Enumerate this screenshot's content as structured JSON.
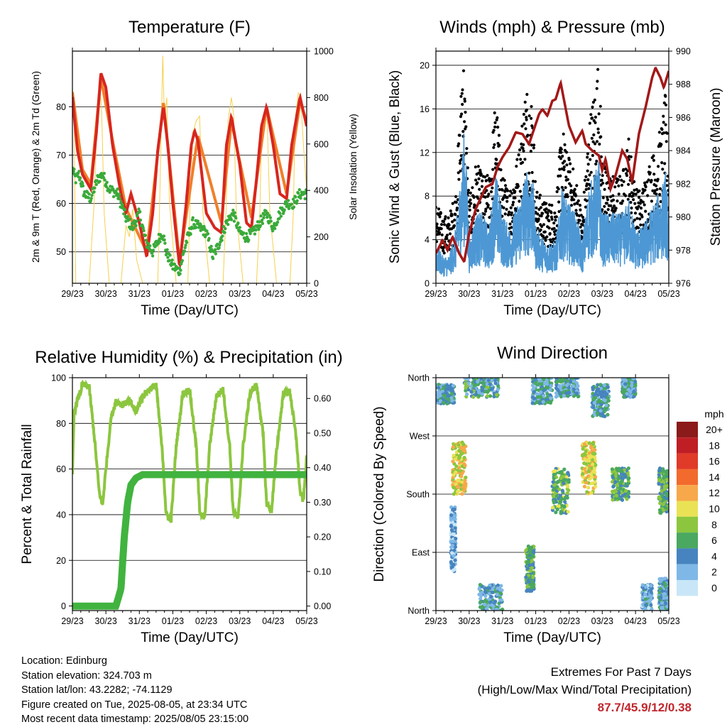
{
  "panels": {
    "temperature": {
      "title": "Temperature (F)"
    },
    "winds": {
      "title": "Winds (mph) & Pressure (mb)"
    },
    "humidity": {
      "title": "Relative Humidity (%) & Precipitation (in)"
    },
    "direction": {
      "title": "Wind Direction"
    }
  },
  "colors": {
    "temp_2m": "#d7261e",
    "temp_9m": "#f07f2a",
    "dewpoint": "#3aaa3a",
    "solar": "#f5d04c",
    "gust": "#000000",
    "wind": "#4d98d4",
    "pressure": "#a31818",
    "humidity": "#8cc63f",
    "rainfall": "#41b33f"
  },
  "chart_data": [
    {
      "type": "line",
      "title": "Temperature (F)",
      "xlabel": "Time (Day/UTC)",
      "ylabel": "2m & 9m T (Red, Orange) & 2m Td (Green)",
      "y2label": "Solar Insolation (Yellow)",
      "x_ticks": [
        "29/23",
        "30/23",
        "31/23",
        "01/23",
        "02/23",
        "03/23",
        "04/23",
        "05/23"
      ],
      "xlim": [
        0,
        7
      ],
      "ylim": [
        43.5,
        91.5
      ],
      "y_ticks": [
        50,
        60,
        70,
        80
      ],
      "y2lim": [
        0,
        1000
      ],
      "y2_ticks": [
        0,
        200,
        400,
        600,
        800,
        1000
      ],
      "grid": "y-major",
      "series": [
        {
          "name": "2m T",
          "axis": "y",
          "x": [
            0,
            0.15,
            0.3,
            0.55,
            0.72,
            0.85,
            1.0,
            1.2,
            1.45,
            1.6,
            1.75,
            2.0,
            2.22,
            2.4,
            2.55,
            2.72,
            2.85,
            3.0,
            3.2,
            3.4,
            3.55,
            3.65,
            3.75,
            4.0,
            4.25,
            4.45,
            4.6,
            4.75,
            5.0,
            5.2,
            5.35,
            5.5,
            5.65,
            5.8,
            6.0,
            6.2,
            6.4,
            6.55,
            6.8,
            7.0
          ],
          "values": [
            82,
            71,
            66,
            63,
            75,
            87,
            84,
            72,
            62,
            58,
            62,
            56,
            49,
            58,
            71,
            80,
            72,
            60,
            47,
            60,
            72,
            75,
            73,
            58,
            55,
            54,
            72,
            78,
            68,
            56,
            55,
            65,
            76,
            80,
            72,
            62,
            61,
            72,
            82,
            76
          ]
        },
        {
          "name": "9m T",
          "axis": "y",
          "x": [
            0,
            0.3,
            0.55,
            0.85,
            1.2,
            1.6,
            2.22,
            2.72,
            3.2,
            3.75,
            4.45,
            4.75,
            5.35,
            5.8,
            6.4,
            6.8,
            7.0
          ],
          "values": [
            83,
            67,
            64,
            86,
            73,
            59,
            50,
            81,
            48,
            74,
            56,
            77,
            57,
            80,
            62,
            81,
            77
          ]
        },
        {
          "name": "2m Td",
          "axis": "y",
          "x": [
            0,
            0.1,
            0.2,
            0.35,
            0.55,
            0.75,
            0.9,
            1.1,
            1.35,
            1.6,
            1.8,
            2.0,
            2.2,
            2.4,
            2.6,
            2.7,
            2.8,
            3.0,
            3.2,
            3.4,
            3.6,
            3.8,
            4.0,
            4.2,
            4.4,
            4.6,
            4.8,
            5.0,
            5.2,
            5.4,
            5.6,
            5.8,
            6.0,
            6.2,
            6.4,
            6.6,
            6.8,
            7.0
          ],
          "values": [
            67,
            65,
            66,
            62,
            61,
            65,
            66,
            63,
            62,
            57,
            55,
            58,
            52,
            50,
            53,
            54,
            50,
            47,
            46,
            52,
            56,
            55,
            54,
            49,
            52,
            56,
            58,
            54,
            53,
            54,
            56,
            58,
            55,
            58,
            60,
            60,
            62,
            62
          ]
        },
        {
          "name": "Solar Insolation",
          "axis": "y2",
          "x": [
            0,
            0.05,
            0.1,
            0.5,
            0.65,
            0.75,
            0.8,
            0.87,
            0.95,
            1.1,
            1.45,
            1.6,
            1.7,
            1.8,
            1.92,
            2.1,
            2.55,
            2.6,
            2.7,
            2.75,
            2.82,
            2.9,
            3.1,
            3.45,
            3.5,
            3.6,
            3.7,
            3.8,
            3.9,
            4.1,
            4.5,
            4.6,
            4.65,
            4.75,
            4.82,
            4.9,
            5.1,
            5.5,
            5.6,
            5.65,
            5.75,
            5.82,
            5.9,
            6.1,
            6.5,
            6.6,
            6.65,
            6.75,
            6.82,
            6.9,
            7.0
          ],
          "values": [
            850,
            700,
            0,
            0,
            350,
            750,
            870,
            760,
            300,
            0,
            0,
            250,
            200,
            320,
            100,
            0,
            0,
            300,
            980,
            700,
            800,
            350,
            0,
            0,
            280,
            650,
            700,
            720,
            300,
            0,
            0,
            350,
            700,
            800,
            720,
            300,
            0,
            0,
            300,
            650,
            720,
            700,
            300,
            0,
            0,
            300,
            700,
            820,
            800,
            600,
            400
          ]
        }
      ]
    },
    {
      "type": "line",
      "title": "Winds (mph) & Pressure (mb)",
      "xlabel": "Time (Day/UTC)",
      "ylabel": "Sonic Wind & Gust (Blue, Black)",
      "y2label": "Station Pressure (Maroon)",
      "x_ticks": [
        "29/23",
        "30/23",
        "31/23",
        "01/23",
        "02/23",
        "03/23",
        "04/23",
        "05/23"
      ],
      "xlim": [
        0,
        7
      ],
      "ylim": [
        0,
        21.3
      ],
      "y_ticks": [
        0,
        4,
        8,
        12,
        16,
        20
      ],
      "y2lim": [
        976,
        990
      ],
      "y2_ticks": [
        976,
        978,
        980,
        982,
        984,
        986,
        988,
        990
      ],
      "grid": "y-major",
      "series": [
        {
          "name": "Gust",
          "axis": "y",
          "type": "scatter",
          "x": [
            0,
            0.2,
            0.4,
            0.6,
            0.75,
            0.8,
            0.9,
            1.0,
            1.2,
            1.4,
            1.6,
            1.8,
            2.0,
            2.2,
            2.5,
            2.7,
            2.9,
            3.0,
            3.3,
            3.6,
            3.8,
            3.9,
            4.2,
            4.4,
            4.6,
            4.8,
            4.9,
            5.0,
            5.3,
            5.6,
            5.8,
            6.0,
            6.2,
            6.4,
            6.6,
            6.8,
            6.9,
            7.0
          ],
          "values": [
            6,
            5,
            5,
            7,
            14,
            19,
            13,
            6,
            9,
            8,
            8,
            14,
            8,
            7,
            10,
            15,
            14,
            7,
            6,
            6,
            12,
            10,
            8,
            5,
            12,
            15,
            17,
            9,
            8,
            8,
            11,
            7,
            7,
            9,
            10,
            12,
            14,
            9
          ]
        },
        {
          "name": "Wind",
          "axis": "y",
          "x": [
            0,
            0.2,
            0.4,
            0.6,
            0.75,
            0.85,
            0.95,
            1.0,
            1.2,
            1.4,
            1.6,
            1.8,
            2.0,
            2.2,
            2.5,
            2.7,
            2.9,
            3.0,
            3.3,
            3.6,
            3.8,
            3.9,
            4.2,
            4.4,
            4.6,
            4.8,
            4.9,
            5.0,
            5.3,
            5.6,
            5.8,
            6.0,
            6.2,
            6.4,
            6.6,
            6.8,
            6.9,
            7.0
          ],
          "values": [
            3,
            2,
            2,
            4,
            8,
            11,
            7,
            3,
            5,
            5,
            4,
            8,
            5,
            4,
            6,
            8,
            8,
            4,
            3,
            3,
            7,
            6,
            5,
            3,
            7,
            8,
            9,
            5,
            5,
            5,
            6,
            4,
            4,
            5,
            6,
            7,
            8,
            5
          ]
        },
        {
          "name": "Station Pressure",
          "axis": "y2",
          "x": [
            0,
            0.2,
            0.35,
            0.5,
            0.7,
            0.85,
            1.0,
            1.2,
            1.5,
            1.7,
            1.85,
            2.0,
            2.2,
            2.4,
            2.6,
            2.8,
            3.0,
            3.1,
            3.2,
            3.35,
            3.5,
            3.6,
            3.75,
            4.0,
            4.2,
            4.4,
            4.5,
            4.7,
            4.9,
            5.0,
            5.1,
            5.25,
            5.4,
            5.6,
            5.75,
            5.9,
            6.1,
            6.3,
            6.5,
            6.6,
            6.75,
            6.85,
            7.0
          ],
          "values": [
            977.8,
            978.6,
            978.0,
            978.8,
            977.8,
            977.3,
            979.0,
            980.5,
            981.8,
            982.0,
            983.0,
            983.6,
            984.2,
            985.1,
            985.0,
            984.4,
            985.6,
            986.2,
            986.5,
            986.1,
            987.0,
            987.1,
            988.1,
            985.5,
            984.5,
            985.2,
            984.4,
            984.0,
            983.7,
            982.8,
            983.5,
            981.7,
            982.5,
            984.0,
            983.5,
            982.1,
            985.0,
            986.6,
            988.4,
            989.0,
            988.4,
            987.8,
            988.8
          ]
        }
      ]
    },
    {
      "type": "line",
      "title": "Relative Humidity (%) & Precipitation (in)",
      "xlabel": "Time (Day/UTC)",
      "ylabel": "Percent & Total Rainfall",
      "x_ticks": [
        "29/23",
        "30/23",
        "31/23",
        "01/23",
        "02/23",
        "03/23",
        "04/23",
        "05/23"
      ],
      "xlim": [
        0,
        7
      ],
      "ylim": [
        -2,
        100
      ],
      "y_ticks": [
        0,
        20,
        40,
        60,
        80,
        100
      ],
      "y2lim": [
        -0.013,
        0.66
      ],
      "y2_ticks": [
        0.0,
        0.1,
        0.2,
        0.3,
        0.4,
        0.5,
        0.6
      ],
      "grid": "y-major",
      "series": [
        {
          "name": "Relative Humidity",
          "axis": "y",
          "x": [
            0,
            0.05,
            0.15,
            0.3,
            0.5,
            0.65,
            0.8,
            0.9,
            1.0,
            1.15,
            1.3,
            1.5,
            1.7,
            1.9,
            2.1,
            2.3,
            2.5,
            2.7,
            2.8,
            2.95,
            3.1,
            3.3,
            3.5,
            3.7,
            3.8,
            3.95,
            4.1,
            4.3,
            4.5,
            4.7,
            4.8,
            4.95,
            5.1,
            5.3,
            5.5,
            5.7,
            5.8,
            5.95,
            6.1,
            6.3,
            6.5,
            6.7,
            6.8,
            6.9,
            7.0
          ],
          "values": [
            57,
            85,
            90,
            97,
            96,
            75,
            50,
            44,
            60,
            82,
            90,
            88,
            90,
            85,
            92,
            95,
            97,
            65,
            40,
            38,
            70,
            93,
            95,
            70,
            42,
            38,
            70,
            92,
            95,
            70,
            42,
            38,
            70,
            93,
            97,
            75,
            45,
            42,
            68,
            93,
            94,
            72,
            50,
            46,
            65
          ]
        },
        {
          "name": "Total Rainfall",
          "axis": "y2",
          "x": [
            0,
            1.3,
            1.45,
            1.55,
            1.65,
            1.75,
            1.9,
            2.1,
            7.0
          ],
          "values": [
            0.0,
            0.0,
            0.05,
            0.2,
            0.3,
            0.35,
            0.37,
            0.38,
            0.38
          ]
        }
      ]
    },
    {
      "type": "scatter",
      "title": "Wind Direction",
      "xlabel": "Time (Day/UTC)",
      "ylabel": "Direction (Colored By Speed)",
      "x_ticks": [
        "29/23",
        "30/23",
        "31/23",
        "01/23",
        "02/23",
        "03/23",
        "04/23",
        "05/23"
      ],
      "y_ticks": [
        "North",
        "East",
        "South",
        "West",
        "North"
      ],
      "y_values": [
        0,
        90,
        180,
        270,
        360
      ],
      "xlim": [
        0,
        7
      ],
      "ylim": [
        0,
        360
      ],
      "grid": "y-major",
      "colorbar": {
        "title": "mph",
        "labels": [
          "20+",
          "18",
          "16",
          "14",
          "12",
          "10",
          "8",
          "6",
          "4",
          "2",
          "0"
        ],
        "colors": [
          "#8b1a1a",
          "#bf1e24",
          "#e03a28",
          "#f26b2d",
          "#f7a84a",
          "#e9e255",
          "#8cc63f",
          "#4aa860",
          "#4784bf",
          "#7fb8e6",
          "#c8e6f7"
        ]
      },
      "clusters": [
        {
          "x0": 0.0,
          "x1": 0.55,
          "d0": 320,
          "d1": 350,
          "speed": 4
        },
        {
          "x0": 0.5,
          "x1": 0.9,
          "d0": 180,
          "d1": 260,
          "speed": 10
        },
        {
          "x0": 0.45,
          "x1": 0.6,
          "d0": 60,
          "d1": 160,
          "speed": 2
        },
        {
          "x0": 0.85,
          "x1": 1.9,
          "d0": 330,
          "d1": 360,
          "speed": 5
        },
        {
          "x0": 1.3,
          "x1": 2.0,
          "d0": 0,
          "d1": 40,
          "speed": 4
        },
        {
          "x0": 2.7,
          "x1": 2.95,
          "d0": 30,
          "d1": 100,
          "speed": 6
        },
        {
          "x0": 2.9,
          "x1": 3.5,
          "d0": 320,
          "d1": 360,
          "speed": 4
        },
        {
          "x0": 3.5,
          "x1": 4.0,
          "d0": 150,
          "d1": 220,
          "speed": 7
        },
        {
          "x0": 3.6,
          "x1": 4.3,
          "d0": 330,
          "d1": 360,
          "speed": 4
        },
        {
          "x0": 4.4,
          "x1": 4.8,
          "d0": 180,
          "d1": 260,
          "speed": 10
        },
        {
          "x0": 4.7,
          "x1": 5.2,
          "d0": 300,
          "d1": 350,
          "speed": 4
        },
        {
          "x0": 5.3,
          "x1": 5.8,
          "d0": 170,
          "d1": 220,
          "speed": 6
        },
        {
          "x0": 5.6,
          "x1": 6.0,
          "d0": 330,
          "d1": 360,
          "speed": 4
        },
        {
          "x0": 6.2,
          "x1": 6.5,
          "d0": 0,
          "d1": 40,
          "speed": 3
        },
        {
          "x0": 6.7,
          "x1": 7.0,
          "d0": 150,
          "d1": 220,
          "speed": 6
        },
        {
          "x0": 6.7,
          "x1": 7.0,
          "d0": 0,
          "d1": 50,
          "speed": 4
        }
      ]
    }
  ],
  "footer": {
    "location": "Location: Edinburg",
    "elevation": "Station elevation: 324.703 m",
    "latlon": "Station lat/lon: 43.2282; -74.1129",
    "created": "Figure created on Tue, 2025-08-05, at 23:34 UTC",
    "recent": "Most recent data timestamp: 2025/08/05 23:15:00",
    "extremes_title": "Extremes For Past 7 Days",
    "extremes_subtitle": "(High/Low/Max Wind/Total Precipitation)",
    "extremes_values": "87.7/45.9/12/0.38"
  }
}
